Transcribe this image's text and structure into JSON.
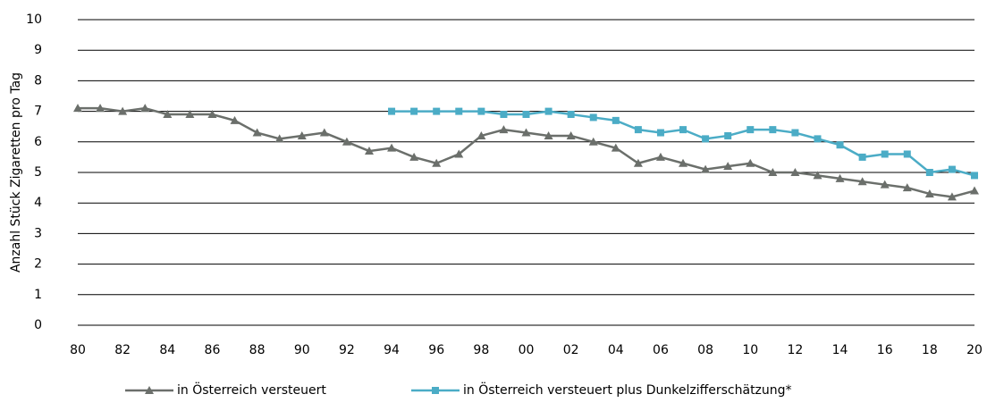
{
  "chart_data": {
    "type": "line",
    "y_label": "Anzahl Stück Zigaretten pro Tag",
    "categories": [
      "80",
      null,
      "82",
      null,
      "84",
      null,
      "86",
      null,
      "88",
      null,
      "90",
      null,
      "92",
      null,
      "94",
      null,
      "96",
      null,
      "98",
      null,
      "00",
      null,
      "02",
      null,
      "04",
      null,
      "06",
      null,
      "08",
      null,
      "10",
      null,
      "12",
      null,
      "14",
      null,
      "16",
      null,
      "18",
      null,
      "20"
    ],
    "series": [
      {
        "name": "in Österreich versteuert",
        "color": "#6b6f6b",
        "marker": "triangle",
        "values": [
          7.1,
          7.1,
          7.0,
          7.1,
          6.9,
          6.9,
          6.9,
          6.7,
          6.3,
          6.1,
          6.2,
          6.3,
          6.0,
          5.7,
          5.8,
          5.5,
          5.3,
          5.6,
          6.2,
          6.4,
          6.3,
          6.2,
          6.2,
          6.0,
          5.8,
          5.3,
          5.5,
          5.3,
          5.1,
          5.2,
          5.3,
          5.0,
          5.0,
          4.9,
          4.8,
          4.7,
          4.6,
          4.5,
          4.3,
          4.2,
          4.4
        ]
      },
      {
        "name": "in Österreich versteuert plus Dunkelzifferschätzung*",
        "color": "#4bacc6",
        "marker": "square",
        "values": [
          null,
          null,
          null,
          null,
          null,
          null,
          null,
          null,
          null,
          null,
          null,
          null,
          null,
          null,
          7.0,
          7.0,
          7.0,
          7.0,
          7.0,
          6.9,
          6.9,
          7.0,
          6.9,
          6.8,
          6.7,
          6.4,
          6.3,
          6.4,
          6.1,
          6.2,
          6.4,
          6.4,
          6.3,
          6.1,
          5.9,
          5.5,
          5.6,
          5.6,
          5.0,
          5.1,
          4.9
        ]
      }
    ],
    "ylim": [
      0,
      10
    ],
    "yticks": [
      0,
      1,
      2,
      3,
      4,
      5,
      6,
      7,
      8,
      9,
      10
    ],
    "grid": true
  }
}
